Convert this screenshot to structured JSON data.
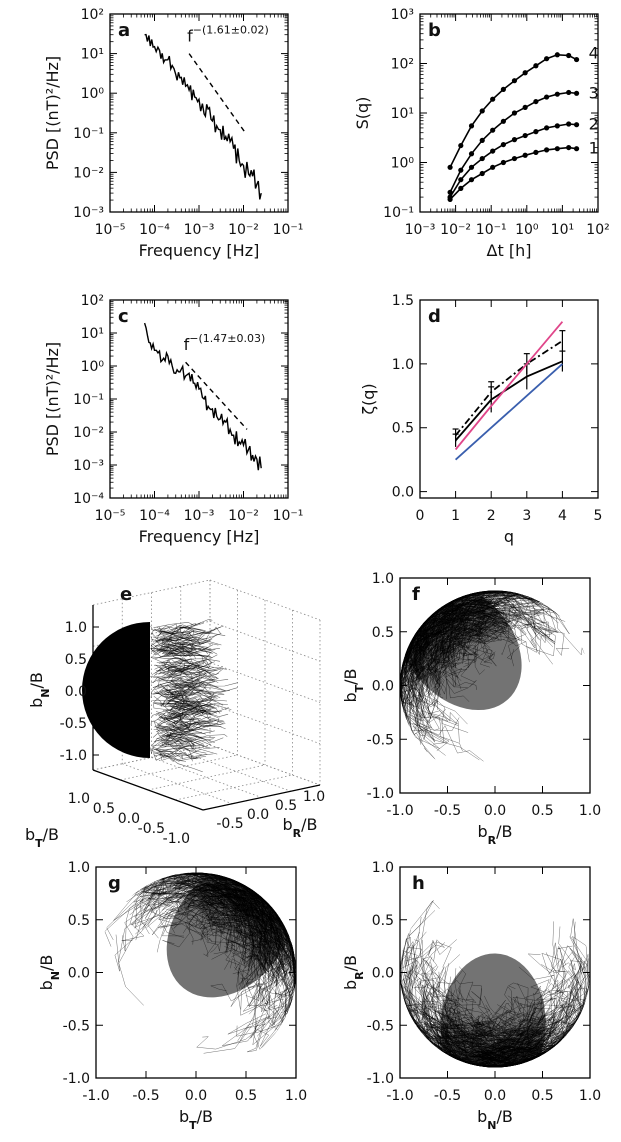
{
  "chart_data": [
    {
      "panel": "a",
      "type": "line",
      "xscale": "log",
      "yscale": "log",
      "xlabel": "Frequency [Hz]",
      "ylabel": "PSD [(nT)²/Hz]",
      "xlim": [
        1e-05,
        0.1
      ],
      "ylim": [
        0.001,
        100
      ],
      "xticks": [
        "10⁻⁵",
        "10⁻⁴",
        "10⁻³",
        "10⁻²",
        "10⁻¹"
      ],
      "yticks": [
        "10⁻³",
        "10⁻²",
        "10⁻¹",
        "10⁰",
        "10¹",
        "10²"
      ],
      "annotation": "f^−(1.61±0.02)",
      "annotation_base": "f",
      "annotation_exp": "−(1.61±0.02)",
      "fit_line": {
        "x": [
          0.0006,
          0.011
        ],
        "y": [
          10,
          0.1
        ]
      },
      "series": [
        {
          "x": [
            6e-05,
            0.0001,
            0.00013,
            0.00016,
            0.0002,
            0.00025,
            0.0003,
            0.0004,
            0.0005,
            0.0006,
            0.0008,
            0.001,
            0.0013,
            0.0016,
            0.002,
            0.0025,
            0.003,
            0.004,
            0.005,
            0.006,
            0.008,
            0.01,
            0.013,
            0.016,
            0.02,
            0.025
          ],
          "y": [
            30,
            15,
            12,
            6,
            7,
            5,
            3,
            2.5,
            1.5,
            1.2,
            0.8,
            0.7,
            0.3,
            0.4,
            0.2,
            0.15,
            0.12,
            0.08,
            0.06,
            0.04,
            0.02,
            0.015,
            0.009,
            0.008,
            0.005,
            0.003
          ]
        }
      ]
    },
    {
      "panel": "b",
      "type": "line",
      "xscale": "log",
      "yscale": "log",
      "xlabel": "Δt [h]",
      "ylabel": "S(q)",
      "xlim": [
        0.001,
        100
      ],
      "ylim": [
        0.1,
        1000
      ],
      "xticks": [
        "10⁻³",
        "10⁻²",
        "10⁻¹",
        "10⁰",
        "10¹",
        "10²"
      ],
      "yticks": [
        "10⁻¹",
        "10⁰",
        "10¹",
        "10²",
        "10³"
      ],
      "x": [
        0.007,
        0.014,
        0.028,
        0.056,
        0.11,
        0.22,
        0.45,
        0.9,
        1.8,
        3.6,
        7.2,
        15,
        25
      ],
      "series": [
        {
          "name": "1",
          "values": [
            0.18,
            0.3,
            0.45,
            0.6,
            0.8,
            1.0,
            1.2,
            1.4,
            1.6,
            1.8,
            1.9,
            2.0,
            1.9
          ]
        },
        {
          "name": "2",
          "values": [
            0.2,
            0.45,
            0.8,
            1.2,
            1.7,
            2.3,
            2.9,
            3.5,
            4.2,
            5.0,
            5.5,
            6.0,
            5.8
          ]
        },
        {
          "name": "3",
          "values": [
            0.25,
            0.7,
            1.5,
            2.8,
            4.5,
            6.8,
            10,
            13,
            17,
            21,
            24,
            26,
            25
          ]
        },
        {
          "name": "4",
          "values": [
            0.8,
            2.2,
            5.5,
            11,
            19,
            30,
            45,
            65,
            90,
            125,
            150,
            145,
            120
          ]
        }
      ]
    },
    {
      "panel": "c",
      "type": "line",
      "xscale": "log",
      "yscale": "log",
      "xlabel": "Frequency [Hz]",
      "ylabel": "PSD [(nT)²/Hz]",
      "xlim": [
        1e-05,
        0.1
      ],
      "ylim": [
        0.0001,
        100
      ],
      "xticks": [
        "10⁻⁵",
        "10⁻⁴",
        "10⁻³",
        "10⁻²",
        "10⁻¹"
      ],
      "yticks": [
        "10⁻⁴",
        "10⁻³",
        "10⁻²",
        "10⁻¹",
        "10⁰",
        "10¹",
        "10²"
      ],
      "annotation": "f^−(1.47±0.03)",
      "annotation_base": "f",
      "annotation_exp": "−(1.47±0.03)",
      "fit_line": {
        "x": [
          0.0005,
          0.012
        ],
        "y": [
          1.3,
          0.012
        ]
      },
      "series": [
        {
          "x": [
            6e-05,
            7e-05,
            8e-05,
            0.0001,
            0.00012,
            0.00015,
            0.0002,
            0.00025,
            0.0003,
            0.0004,
            0.0005,
            0.0006,
            0.0008,
            0.001,
            0.0013,
            0.0016,
            0.002,
            0.0025,
            0.003,
            0.004,
            0.005,
            0.006,
            0.008,
            0.01,
            0.013,
            0.016,
            0.02,
            0.025
          ],
          "y": [
            20,
            8,
            5,
            3,
            2.5,
            1.5,
            2,
            1.0,
            0.6,
            0.8,
            0.5,
            0.6,
            0.3,
            0.2,
            0.1,
            0.06,
            0.05,
            0.03,
            0.025,
            0.02,
            0.012,
            0.008,
            0.005,
            0.004,
            0.003,
            0.002,
            0.0015,
            0.0008
          ]
        }
      ]
    },
    {
      "panel": "d",
      "type": "line",
      "xlabel": "q",
      "ylabel": "ζ(q)",
      "xlim": [
        0,
        5
      ],
      "ylim": [
        -0.05,
        1.5
      ],
      "xticks": [
        "0",
        "1",
        "2",
        "3",
        "4",
        "5"
      ],
      "yticks": [
        "0.0",
        "0.5",
        "1.0",
        "1.5"
      ],
      "x": [
        1,
        2,
        3,
        4
      ],
      "series": [
        {
          "color": "#000000",
          "style": "solid",
          "values": [
            0.4,
            0.72,
            0.9,
            1.02
          ],
          "errors": [
            0.05,
            0.1,
            0.1,
            0.08
          ]
        },
        {
          "color": "#000000",
          "style": "dashdot",
          "values": [
            0.44,
            0.78,
            1.0,
            1.18
          ],
          "errors": [
            0.05,
            0.08,
            0.08,
            0.08
          ]
        },
        {
          "color": "#e0468a",
          "style": "solid",
          "values": [
            0.33,
            0.67,
            1.0,
            1.33
          ]
        },
        {
          "color": "#3a5fae",
          "style": "solid",
          "values": [
            0.25,
            0.5,
            0.75,
            1.0
          ]
        }
      ]
    },
    {
      "panel": "e",
      "type": "scatter",
      "zlabel": "b_N/B",
      "xlabel": "b_T/B",
      "ylabel": "b_R/B",
      "zticks": [
        "1.0",
        "0.5",
        "0.0",
        "-0.5",
        "-1.0"
      ],
      "xticks": [
        "1.0",
        "0.5",
        "0.0",
        "-0.5",
        "-1.0"
      ],
      "yticks": [
        "-0.5",
        "0.0",
        "0.5",
        "1.0"
      ]
    },
    {
      "panel": "f",
      "type": "scatter",
      "xlabel": "b_R/B",
      "ylabel": "b_T/B",
      "xlim": [
        -1,
        1
      ],
      "ylim": [
        -1,
        1
      ],
      "xticks": [
        "-1.0",
        "-0.5",
        "0.0",
        "0.5",
        "1.0"
      ],
      "yticks": [
        "-1.0",
        "-0.5",
        "0.0",
        "0.5",
        "1.0"
      ]
    },
    {
      "panel": "g",
      "type": "scatter",
      "xlabel": "b_T/B",
      "ylabel": "b_N/B",
      "xlim": [
        -1,
        1
      ],
      "ylim": [
        -1,
        1
      ],
      "xticks": [
        "-1.0",
        "-0.5",
        "0.0",
        "0.5",
        "1.0"
      ],
      "yticks": [
        "-1.0",
        "-0.5",
        "0.0",
        "0.5",
        "1.0"
      ]
    },
    {
      "panel": "h",
      "type": "scatter",
      "xlabel": "b_N/B",
      "ylabel": "b_R/B",
      "xlim": [
        -1,
        1
      ],
      "ylim": [
        -1,
        1
      ],
      "xticks": [
        "-1.0",
        "-0.5",
        "0.0",
        "0.5",
        "1.0"
      ],
      "yticks": [
        "-1.0",
        "-0.5",
        "0.0",
        "0.5",
        "1.0"
      ]
    }
  ],
  "curve_labels": [
    "1",
    "2",
    "3",
    "4"
  ],
  "panel_letters": [
    "a",
    "b",
    "c",
    "d",
    "e",
    "f",
    "g",
    "h"
  ]
}
